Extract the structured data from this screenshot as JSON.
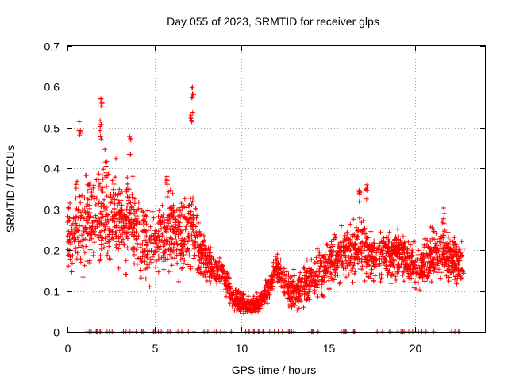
{
  "chart_data": {
    "type": "scatter",
    "title": "Day 055 of 2023, SRMTID for receiver glps",
    "xlabel": "GPS time / hours",
    "ylabel": "SRMTID / TECUs",
    "xlim": [
      0,
      24
    ],
    "ylim": [
      0,
      0.7
    ],
    "xticks": [
      0,
      5,
      10,
      15,
      20
    ],
    "xtick_labels": [
      "0",
      "5",
      "10",
      "15",
      "20"
    ],
    "yticks": [
      0,
      0.1,
      0.2,
      0.3,
      0.4,
      0.5,
      0.6,
      0.7
    ],
    "ytick_labels": [
      "0",
      "0.1",
      "0.2",
      "0.3",
      "0.4",
      "0.5",
      "0.6",
      "0.7"
    ],
    "grid": true,
    "marker": "+",
    "color": "#ff0000",
    "x_range_hours": [
      0,
      22.8
    ],
    "trend": {
      "x": [
        0,
        0.5,
        1,
        1.5,
        2,
        2.5,
        3,
        3.5,
        4,
        4.5,
        5,
        5.5,
        6,
        6.5,
        7,
        7.5,
        8,
        8.5,
        9,
        9.5,
        10,
        10.5,
        11,
        11.5,
        12,
        12.5,
        13,
        13.5,
        14,
        14.5,
        15,
        15.5,
        16,
        16.5,
        17,
        17.5,
        18,
        18.5,
        19,
        19.5,
        20,
        20.5,
        21,
        21.5,
        22,
        22.5,
        22.8
      ],
      "y": [
        0.22,
        0.25,
        0.27,
        0.28,
        0.3,
        0.29,
        0.27,
        0.28,
        0.25,
        0.2,
        0.21,
        0.24,
        0.25,
        0.23,
        0.27,
        0.21,
        0.17,
        0.15,
        0.14,
        0.08,
        0.07,
        0.06,
        0.07,
        0.1,
        0.16,
        0.11,
        0.1,
        0.11,
        0.13,
        0.15,
        0.17,
        0.18,
        0.2,
        0.2,
        0.21,
        0.19,
        0.19,
        0.18,
        0.19,
        0.18,
        0.15,
        0.17,
        0.19,
        0.2,
        0.18,
        0.17,
        0.16
      ]
    },
    "spread": {
      "x": [
        0,
        1,
        2,
        3,
        4,
        5,
        6,
        7,
        8,
        9,
        10,
        11,
        12,
        13,
        14,
        15,
        16,
        17,
        18,
        19,
        20,
        21,
        22,
        22.8
      ],
      "y": [
        0.08,
        0.1,
        0.11,
        0.1,
        0.09,
        0.07,
        0.08,
        0.09,
        0.05,
        0.03,
        0.02,
        0.02,
        0.03,
        0.04,
        0.05,
        0.05,
        0.06,
        0.06,
        0.05,
        0.05,
        0.05,
        0.06,
        0.05,
        0.04
      ]
    },
    "peaks": [
      {
        "x": 0.7,
        "y": 0.52
      },
      {
        "x": 1.95,
        "y": 0.6
      },
      {
        "x": 1.9,
        "y": 0.52
      },
      {
        "x": 3.6,
        "y": 0.48
      },
      {
        "x": 5.7,
        "y": 0.4
      },
      {
        "x": 7.2,
        "y": 0.6
      },
      {
        "x": 7.15,
        "y": 0.55
      },
      {
        "x": 16.8,
        "y": 0.35
      },
      {
        "x": 17.2,
        "y": 0.36
      },
      {
        "x": 21.6,
        "y": 0.31
      }
    ],
    "zero_baseline_points": 95,
    "scatter_points": 2600
  }
}
